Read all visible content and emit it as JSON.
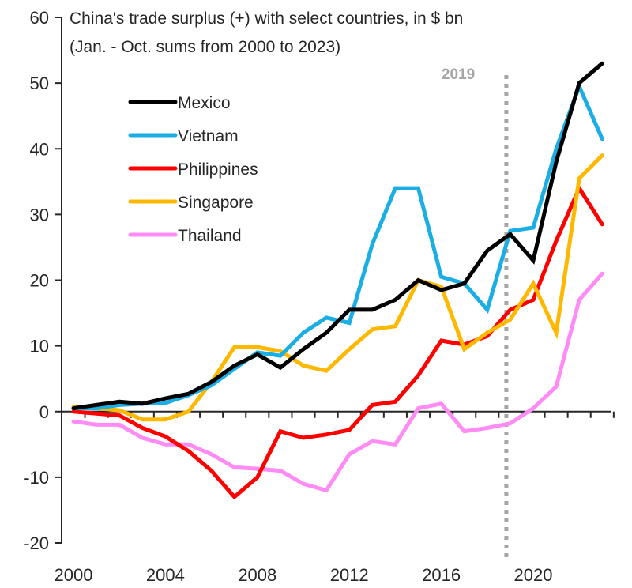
{
  "chart_data": {
    "type": "line",
    "title": "China's trade surplus (+) with select countries, in $ bn",
    "subtitle": "(Jan. - Oct. sums from 2000  to 2023)",
    "xlabel": "",
    "ylabel": "",
    "x": [
      2000,
      2001,
      2002,
      2003,
      2004,
      2005,
      2006,
      2007,
      2008,
      2009,
      2010,
      2011,
      2012,
      2013,
      2014,
      2015,
      2016,
      2017,
      2018,
      2019,
      2020,
      2021,
      2022,
      2023
    ],
    "xticks": [
      "2000",
      "2004",
      "2008",
      "2012",
      "2016",
      "2020"
    ],
    "xtick_values": [
      2000,
      2004,
      2008,
      2012,
      2016,
      2020
    ],
    "yticks": [
      "60",
      "50",
      "40",
      "30",
      "20",
      "10",
      "0",
      "-10",
      "-20"
    ],
    "ytick_values": [
      60,
      50,
      40,
      30,
      20,
      10,
      0,
      -10,
      -20
    ],
    "ylim": [
      -20,
      60
    ],
    "xlim": [
      2000,
      2023
    ],
    "grid": false,
    "legend_position": "top-left",
    "series": [
      {
        "name": "Mexico",
        "color": "#000000",
        "values": [
          0.5,
          1,
          1.5,
          1.2,
          2,
          2.7,
          4.5,
          7,
          8.7,
          6.7,
          9.5,
          12,
          15.5,
          15.5,
          17,
          20,
          18.5,
          19.5,
          24.5,
          27,
          23,
          38,
          50,
          53
        ]
      },
      {
        "name": "Vietnam",
        "color": "#1aaee5",
        "values": [
          0.5,
          0.5,
          1,
          1.2,
          1.3,
          2.5,
          4,
          6.5,
          9,
          8.5,
          12,
          14.3,
          13.5,
          25.5,
          34,
          34,
          20.5,
          19.5,
          15.5,
          27.5,
          28,
          40,
          49.5,
          41.5
        ]
      },
      {
        "name": "Philippines",
        "color": "#ff0000",
        "values": [
          0,
          -0.3,
          -0.6,
          -2.5,
          -3.8,
          -6,
          -9,
          -13,
          -10,
          -3,
          -4,
          -3.5,
          -2.8,
          1,
          1.5,
          5.5,
          10.8,
          10.2,
          11.5,
          15.5,
          17,
          26,
          34,
          28.5
        ]
      },
      {
        "name": "Singapore",
        "color": "#ffb800",
        "values": [
          0.7,
          0.5,
          0.2,
          -1.2,
          -1.2,
          0,
          4.5,
          9.8,
          9.8,
          9.2,
          7,
          6.2,
          9.5,
          12.5,
          13,
          20,
          19,
          9.5,
          12,
          14,
          19.5,
          12,
          35.5,
          39
        ]
      },
      {
        "name": "Thailand",
        "color": "#ff8cf5",
        "values": [
          -1.5,
          -2,
          -2,
          -4,
          -5,
          -5,
          -6.5,
          -8.5,
          -8.7,
          -9,
          -11,
          -12,
          -6.5,
          -4.5,
          -5,
          0.5,
          1.2,
          -3,
          -2.5,
          -1.8,
          0.5,
          3.8,
          17,
          21
        ]
      }
    ],
    "annotations": [
      {
        "type": "vertical-dotted-line",
        "x": 2019,
        "label": "2019",
        "color": "#a6a6a6"
      }
    ]
  }
}
